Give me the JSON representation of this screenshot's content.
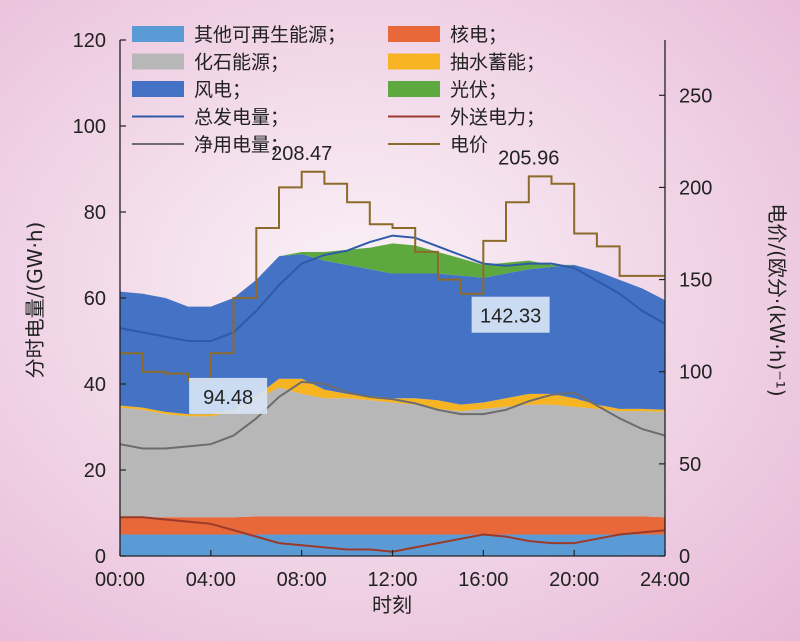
{
  "chart_data": {
    "type": "area",
    "x": [
      "00:00",
      "01:00",
      "02:00",
      "03:00",
      "04:00",
      "05:00",
      "06:00",
      "07:00",
      "08:00",
      "09:00",
      "10:00",
      "11:00",
      "12:00",
      "13:00",
      "14:00",
      "15:00",
      "16:00",
      "17:00",
      "18:00",
      "19:00",
      "20:00",
      "21:00",
      "22:00",
      "23:00",
      "24:00"
    ],
    "xlabel": "时刻",
    "xticks": [
      "00:00",
      "04:00",
      "08:00",
      "12:00",
      "16:00",
      "20:00",
      "24:00"
    ],
    "ylabel": "分时电量/(GW·h)",
    "ylim": [
      0,
      120
    ],
    "yticks": [
      0,
      20,
      40,
      60,
      80,
      100,
      120
    ],
    "y2label": "电价/(欧分·(kW·h)⁻¹)",
    "y2lim": [
      0,
      280
    ],
    "y2ticks": [
      0,
      50,
      100,
      150,
      200,
      250
    ],
    "stacked_series": [
      {
        "name": "其他可再生能源；",
        "color": "#5b9bd5",
        "values": [
          5,
          5,
          5,
          5,
          5,
          5,
          5,
          5,
          5,
          5,
          5,
          5,
          5,
          5,
          5,
          5,
          5,
          5,
          5,
          5,
          5,
          5,
          5,
          5,
          5
        ]
      },
      {
        "name": "核电；",
        "color": "#e8683a",
        "values": [
          4,
          4,
          4,
          4,
          4,
          4,
          4.2,
          4.2,
          4.2,
          4.2,
          4.2,
          4.2,
          4.2,
          4.2,
          4.2,
          4.2,
          4.2,
          4.2,
          4.2,
          4.2,
          4.2,
          4.2,
          4.2,
          4.2,
          4
        ]
      },
      {
        "name": "化石能源；",
        "color": "#b7b7b7",
        "values": [
          25.5,
          25,
          24,
          23.5,
          23.5,
          24.5,
          27,
          30,
          28.5,
          27.5,
          27.5,
          27,
          26.5,
          26,
          25,
          24.5,
          25,
          25.5,
          26,
          26,
          25.5,
          25,
          24.5,
          24.5,
          24.5
        ]
      },
      {
        "name": "抽水蓄能；",
        "color": "#f7b422",
        "values": [
          0.5,
          0.5,
          0.5,
          0.5,
          0.5,
          0.5,
          1,
          2,
          3.5,
          2,
          1,
          1,
          1,
          1.5,
          2,
          1.5,
          1.5,
          2,
          2.5,
          2.5,
          2,
          1,
          0.5,
          0.5,
          0.5
        ]
      },
      {
        "name": "风电；",
        "color": "#4472c4",
        "values": [
          26.5,
          26.5,
          26.5,
          25,
          25,
          26,
          27,
          28.5,
          29,
          30,
          30,
          29.5,
          29,
          29,
          29.5,
          30,
          29,
          29,
          29,
          29.5,
          31,
          31,
          30,
          28,
          25.5
        ]
      },
      {
        "name": "光伏；",
        "color": "#5ea840",
        "values": [
          0,
          0,
          0,
          0,
          0,
          0,
          0,
          0,
          0.5,
          2,
          3.5,
          5,
          7,
          6.5,
          5,
          4,
          3,
          2.5,
          2,
          0.5,
          0,
          0,
          0,
          0,
          0
        ]
      }
    ],
    "line_series": [
      {
        "name": "总发电量；",
        "axis": "left",
        "color": "#2f5aa8",
        "values": [
          53,
          52,
          51,
          50,
          50,
          52,
          57,
          63,
          68,
          70,
          71,
          73,
          74.5,
          74,
          72,
          70,
          68,
          67.5,
          68,
          68,
          67,
          64,
          61,
          57,
          54
        ]
      },
      {
        "name": "外送电力；",
        "axis": "left",
        "color": "#9b3a2a",
        "values": [
          9,
          9,
          8.5,
          8,
          7.5,
          6,
          4.5,
          3,
          2.5,
          2,
          1.5,
          1.5,
          1,
          2,
          3,
          4,
          5,
          4.5,
          3.5,
          3,
          3,
          4,
          5,
          5.5,
          6
        ]
      },
      {
        "name": "净用电量；",
        "axis": "left",
        "color": "#6d6d6d",
        "values": [
          26,
          25,
          25,
          25.5,
          26,
          28,
          32,
          37,
          40.5,
          40,
          38,
          37,
          36.5,
          35.5,
          34,
          33,
          33,
          34,
          36,
          37.5,
          38,
          35,
          32,
          29.5,
          28
        ]
      },
      {
        "name": "电价",
        "axis": "right",
        "step": true,
        "color": "#8b6a2a",
        "values": [
          110,
          100,
          99,
          95,
          110,
          140,
          178,
          200,
          208.47,
          202,
          192,
          180,
          178,
          165,
          150,
          142.33,
          171,
          192,
          205.96,
          202,
          175,
          168,
          152,
          152,
          152
        ]
      }
    ],
    "annotations": [
      "94.48",
      "208.47",
      "142.33",
      "205.96"
    ],
    "legend": "top"
  }
}
